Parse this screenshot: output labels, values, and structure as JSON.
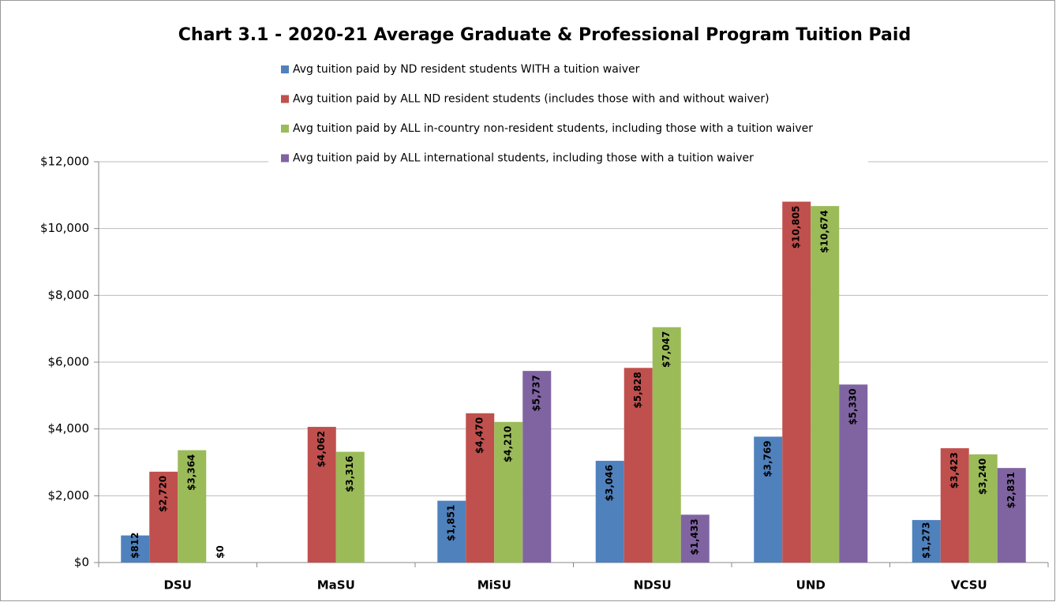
{
  "chart_data": {
    "type": "bar",
    "title": "Chart 3.1 - 2020-21 Average Graduate & Professional Program Tuition Paid",
    "categories": [
      "DSU",
      "MaSU",
      "MiSU",
      "NDSU",
      "UND",
      "VCSU"
    ],
    "series": [
      {
        "name": "Avg tuition paid by ND resident students WITH a tuition waiver",
        "color": "#4f81bd",
        "values": [
          812,
          null,
          1851,
          3046,
          3769,
          1273
        ],
        "value_labels": [
          "$812",
          null,
          "$1,851",
          "$3,046",
          "$3,769",
          "$1,273"
        ]
      },
      {
        "name": "Avg tuition paid by ALL ND resident students (includes those with and without waiver)",
        "color": "#c0504d",
        "values": [
          2720,
          4062,
          4470,
          5828,
          10805,
          3423
        ],
        "value_labels": [
          "$2,720",
          "$4,062",
          "$4,470",
          "$5,828",
          "$10,805",
          "$3,423"
        ]
      },
      {
        "name": "Avg tuition paid by ALL in-country non-resident students, including those with a tuition waiver",
        "color": "#9bbb59",
        "values": [
          3364,
          3316,
          4210,
          7047,
          10674,
          3240
        ],
        "value_labels": [
          "$3,364",
          "$3,316",
          "$4,210",
          "$7,047",
          "$10,674",
          "$3,240"
        ]
      },
      {
        "name": "Avg tuition paid by ALL international students, including those with a tuition waiver",
        "color": "#8064a2",
        "values": [
          0,
          null,
          5737,
          1433,
          5330,
          2831
        ],
        "value_labels": [
          "$0",
          null,
          "$5,737",
          "$1,433",
          "$5,330",
          "$2,831"
        ]
      }
    ],
    "ylim": [
      0,
      12000
    ],
    "yticks": [
      {
        "value": 0,
        "label": "$0"
      },
      {
        "value": 2000,
        "label": "$2,000"
      },
      {
        "value": 4000,
        "label": "$4,000"
      },
      {
        "value": 6000,
        "label": "$6,000"
      },
      {
        "value": 8000,
        "label": "$8,000"
      },
      {
        "value": 10000,
        "label": "$10,000"
      },
      {
        "value": 12000,
        "label": "$12,000"
      }
    ],
    "grid": true
  }
}
